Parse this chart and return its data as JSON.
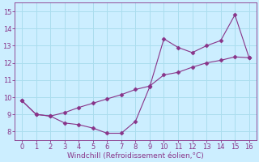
{
  "xlabel": "Windchill (Refroidissement éolien,°C)",
  "x": [
    0,
    1,
    2,
    3,
    4,
    5,
    6,
    7,
    8,
    9,
    10,
    11,
    12,
    13,
    14,
    15,
    16
  ],
  "line1_y": [
    9.8,
    9.0,
    8.9,
    8.5,
    8.4,
    8.2,
    7.9,
    7.9,
    8.6,
    10.6,
    13.4,
    12.9,
    12.6,
    13.0,
    13.3,
    14.8,
    12.3
  ],
  "line2_x": [
    0,
    1,
    2,
    3,
    4,
    5,
    6,
    7,
    8,
    9,
    10,
    11,
    12,
    13,
    14,
    15,
    16
  ],
  "line2_y": [
    9.8,
    9.0,
    8.9,
    9.1,
    9.4,
    9.65,
    9.9,
    10.15,
    10.45,
    10.65,
    11.3,
    11.45,
    11.75,
    12.0,
    12.15,
    12.35,
    12.3
  ],
  "line_color": "#883388",
  "marker": "D",
  "markersize": 2.5,
  "xlim": [
    -0.5,
    16.5
  ],
  "ylim": [
    7.5,
    15.5
  ],
  "yticks": [
    8,
    9,
    10,
    11,
    12,
    13,
    14,
    15
  ],
  "xticks": [
    0,
    1,
    2,
    3,
    4,
    5,
    6,
    7,
    8,
    9,
    10,
    11,
    12,
    13,
    14,
    15,
    16
  ],
  "bg_color": "#cceeff",
  "grid_color": "#aaddee",
  "fig_bg": "#cceeff",
  "tick_labelsize": 6,
  "xlabel_fontsize": 6.5
}
